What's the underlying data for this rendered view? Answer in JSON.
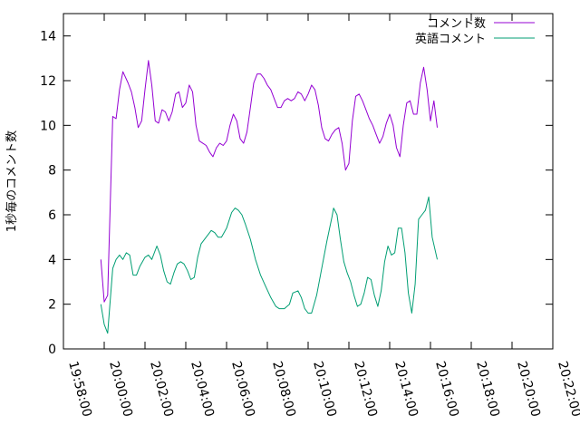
{
  "chart_data": {
    "type": "line",
    "title": "",
    "xlabel": "",
    "ylabel": "1秒毎のコメント数",
    "ylim": [
      0,
      15
    ],
    "yticks": [
      0,
      2,
      4,
      6,
      8,
      10,
      12,
      14
    ],
    "xlim": [
      "19:58:00",
      "20:22:00"
    ],
    "xticks": [
      "19:58:00",
      "20:00:00",
      "20:02:00",
      "20:04:00",
      "20:06:00",
      "20:08:00",
      "20:10:00",
      "20:12:00",
      "20:14:00",
      "20:16:00",
      "20:18:00",
      "20:20:00",
      "20:22:00"
    ],
    "grid": false,
    "legend_position": "top-right",
    "series": [
      {
        "name": "コメント数",
        "color": "#9400d3",
        "points": [
          [
            "19:59:50",
            4.0
          ],
          [
            "20:00:00",
            2.1
          ],
          [
            "20:00:10",
            2.4
          ],
          [
            "20:00:25",
            10.4
          ],
          [
            "20:00:35",
            10.3
          ],
          [
            "20:00:45",
            11.6
          ],
          [
            "20:00:55",
            12.4
          ],
          [
            "20:01:10",
            11.9
          ],
          [
            "20:01:20",
            11.5
          ],
          [
            "20:01:30",
            10.8
          ],
          [
            "20:01:40",
            9.9
          ],
          [
            "20:01:50",
            10.2
          ],
          [
            "20:02:00",
            11.6
          ],
          [
            "20:02:10",
            12.9
          ],
          [
            "20:02:20",
            11.8
          ],
          [
            "20:02:30",
            10.2
          ],
          [
            "20:02:40",
            10.1
          ],
          [
            "20:02:50",
            10.7
          ],
          [
            "20:03:00",
            10.6
          ],
          [
            "20:03:10",
            10.2
          ],
          [
            "20:03:20",
            10.6
          ],
          [
            "20:03:30",
            11.4
          ],
          [
            "20:03:40",
            11.5
          ],
          [
            "20:03:50",
            10.8
          ],
          [
            "20:04:00",
            11.0
          ],
          [
            "20:04:10",
            11.8
          ],
          [
            "20:04:20",
            11.5
          ],
          [
            "20:04:30",
            10.0
          ],
          [
            "20:04:40",
            9.3
          ],
          [
            "20:04:50",
            9.2
          ],
          [
            "20:05:00",
            9.1
          ],
          [
            "20:05:10",
            8.8
          ],
          [
            "20:05:20",
            8.6
          ],
          [
            "20:05:30",
            9.0
          ],
          [
            "20:05:40",
            9.2
          ],
          [
            "20:05:50",
            9.1
          ],
          [
            "20:06:00",
            9.3
          ],
          [
            "20:06:10",
            10.0
          ],
          [
            "20:06:20",
            10.5
          ],
          [
            "20:06:30",
            10.2
          ],
          [
            "20:06:40",
            9.4
          ],
          [
            "20:06:50",
            9.2
          ],
          [
            "20:07:00",
            9.7
          ],
          [
            "20:07:10",
            10.8
          ],
          [
            "20:07:20",
            11.9
          ],
          [
            "20:07:30",
            12.3
          ],
          [
            "20:07:40",
            12.3
          ],
          [
            "20:07:50",
            12.1
          ],
          [
            "20:08:00",
            11.8
          ],
          [
            "20:08:10",
            11.6
          ],
          [
            "20:08:20",
            11.2
          ],
          [
            "20:08:30",
            10.8
          ],
          [
            "20:08:40",
            10.8
          ],
          [
            "20:08:50",
            11.1
          ],
          [
            "20:09:00",
            11.2
          ],
          [
            "20:09:10",
            11.1
          ],
          [
            "20:09:20",
            11.2
          ],
          [
            "20:09:30",
            11.5
          ],
          [
            "20:09:40",
            11.4
          ],
          [
            "20:09:50",
            11.1
          ],
          [
            "20:10:00",
            11.4
          ],
          [
            "20:10:10",
            11.8
          ],
          [
            "20:10:20",
            11.6
          ],
          [
            "20:10:30",
            10.9
          ],
          [
            "20:10:40",
            9.9
          ],
          [
            "20:10:50",
            9.4
          ],
          [
            "20:11:00",
            9.3
          ],
          [
            "20:11:10",
            9.6
          ],
          [
            "20:11:20",
            9.8
          ],
          [
            "20:11:30",
            9.9
          ],
          [
            "20:11:40",
            9.2
          ],
          [
            "20:11:50",
            8.0
          ],
          [
            "20:12:00",
            8.3
          ],
          [
            "20:12:10",
            10.2
          ],
          [
            "20:12:20",
            11.3
          ],
          [
            "20:12:30",
            11.4
          ],
          [
            "20:12:40",
            11.1
          ],
          [
            "20:12:50",
            10.7
          ],
          [
            "20:13:00",
            10.3
          ],
          [
            "20:13:10",
            10.0
          ],
          [
            "20:13:20",
            9.6
          ],
          [
            "20:13:30",
            9.2
          ],
          [
            "20:13:40",
            9.5
          ],
          [
            "20:13:50",
            10.1
          ],
          [
            "20:14:00",
            10.5
          ],
          [
            "20:14:10",
            10.0
          ],
          [
            "20:14:20",
            9.0
          ],
          [
            "20:14:30",
            8.6
          ],
          [
            "20:14:40",
            10.0
          ],
          [
            "20:14:50",
            11.0
          ],
          [
            "20:15:00",
            11.1
          ],
          [
            "20:15:10",
            10.5
          ],
          [
            "20:15:20",
            10.5
          ],
          [
            "20:15:30",
            11.9
          ],
          [
            "20:15:40",
            12.6
          ],
          [
            "20:15:50",
            11.6
          ],
          [
            "20:16:00",
            10.2
          ],
          [
            "20:16:10",
            11.1
          ],
          [
            "20:16:20",
            9.9
          ]
        ]
      },
      {
        "name": "英語コメント",
        "color": "#009e73",
        "points": [
          [
            "19:59:50",
            2.0
          ],
          [
            "20:00:00",
            1.1
          ],
          [
            "20:00:10",
            0.7
          ],
          [
            "20:00:25",
            3.6
          ],
          [
            "20:00:35",
            4.0
          ],
          [
            "20:00:45",
            4.2
          ],
          [
            "20:00:55",
            4.0
          ],
          [
            "20:01:05",
            4.3
          ],
          [
            "20:01:15",
            4.2
          ],
          [
            "20:01:25",
            3.3
          ],
          [
            "20:01:35",
            3.3
          ],
          [
            "20:01:45",
            3.7
          ],
          [
            "20:02:00",
            4.1
          ],
          [
            "20:02:10",
            4.2
          ],
          [
            "20:02:20",
            4.0
          ],
          [
            "20:02:35",
            4.6
          ],
          [
            "20:02:45",
            4.2
          ],
          [
            "20:02:55",
            3.5
          ],
          [
            "20:03:05",
            3.0
          ],
          [
            "20:03:15",
            2.9
          ],
          [
            "20:03:25",
            3.4
          ],
          [
            "20:03:35",
            3.8
          ],
          [
            "20:03:45",
            3.9
          ],
          [
            "20:03:55",
            3.8
          ],
          [
            "20:04:05",
            3.5
          ],
          [
            "20:04:15",
            3.1
          ],
          [
            "20:04:25",
            3.2
          ],
          [
            "20:04:35",
            4.1
          ],
          [
            "20:04:45",
            4.7
          ],
          [
            "20:05:00",
            5.0
          ],
          [
            "20:05:15",
            5.3
          ],
          [
            "20:05:25",
            5.2
          ],
          [
            "20:05:35",
            5.0
          ],
          [
            "20:05:45",
            5.0
          ],
          [
            "20:06:00",
            5.4
          ],
          [
            "20:06:15",
            6.1
          ],
          [
            "20:06:25",
            6.3
          ],
          [
            "20:06:35",
            6.2
          ],
          [
            "20:06:45",
            6.0
          ],
          [
            "20:06:55",
            5.6
          ],
          [
            "20:07:10",
            4.9
          ],
          [
            "20:07:25",
            4.0
          ],
          [
            "20:07:40",
            3.3
          ],
          [
            "20:07:55",
            2.8
          ],
          [
            "20:08:10",
            2.3
          ],
          [
            "20:08:25",
            1.9
          ],
          [
            "20:08:35",
            1.8
          ],
          [
            "20:08:50",
            1.8
          ],
          [
            "20:09:05",
            2.0
          ],
          [
            "20:09:15",
            2.5
          ],
          [
            "20:09:30",
            2.6
          ],
          [
            "20:09:40",
            2.3
          ],
          [
            "20:09:50",
            1.8
          ],
          [
            "20:10:00",
            1.6
          ],
          [
            "20:10:10",
            1.6
          ],
          [
            "20:10:25",
            2.4
          ],
          [
            "20:10:40",
            3.6
          ],
          [
            "20:10:55",
            4.8
          ],
          [
            "20:11:10",
            5.9
          ],
          [
            "20:11:15",
            6.3
          ],
          [
            "20:11:25",
            6.0
          ],
          [
            "20:11:35",
            4.9
          ],
          [
            "20:11:45",
            3.9
          ],
          [
            "20:11:55",
            3.4
          ],
          [
            "20:12:05",
            3.0
          ],
          [
            "20:12:15",
            2.4
          ],
          [
            "20:12:25",
            1.9
          ],
          [
            "20:12:35",
            2.0
          ],
          [
            "20:12:45",
            2.5
          ],
          [
            "20:12:55",
            3.2
          ],
          [
            "20:13:05",
            3.1
          ],
          [
            "20:13:15",
            2.4
          ],
          [
            "20:13:25",
            1.9
          ],
          [
            "20:13:35",
            2.6
          ],
          [
            "20:13:45",
            3.9
          ],
          [
            "20:13:55",
            4.6
          ],
          [
            "20:14:05",
            4.2
          ],
          [
            "20:14:15",
            4.3
          ],
          [
            "20:14:25",
            5.4
          ],
          [
            "20:14:35",
            5.4
          ],
          [
            "20:14:45",
            4.3
          ],
          [
            "20:14:55",
            2.5
          ],
          [
            "20:15:05",
            1.6
          ],
          [
            "20:15:15",
            2.9
          ],
          [
            "20:15:25",
            5.8
          ],
          [
            "20:15:35",
            6.0
          ],
          [
            "20:15:45",
            6.2
          ],
          [
            "20:15:55",
            6.8
          ],
          [
            "20:16:05",
            5.0
          ],
          [
            "20:16:20",
            4.0
          ]
        ]
      }
    ]
  }
}
